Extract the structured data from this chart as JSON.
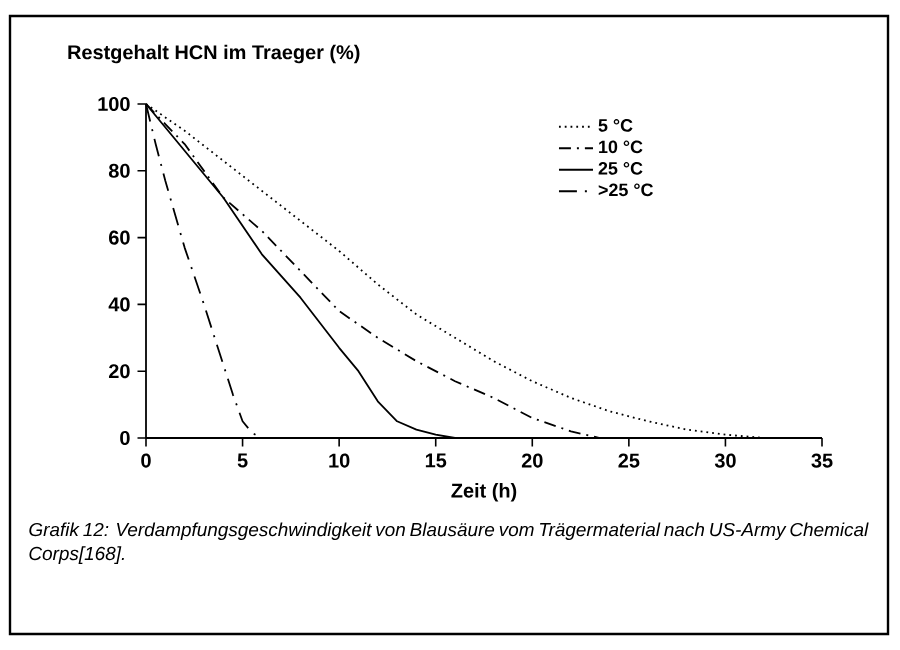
{
  "chart_data": {
    "type": "line",
    "ylabel": "Restgehalt HCN im Traeger (%)",
    "xlabel": "Zeit (h)",
    "annotations": [
      "Grafik 12: Verdampfungsgeschwindigkeit von Blausäure vom Trägermaterial nach US-Army Chemical Corps[168]."
    ],
    "xlim": [
      0,
      35
    ],
    "xticks": [
      0,
      5,
      10,
      15,
      20,
      25,
      30,
      35
    ],
    "ylim": [
      0,
      100
    ],
    "yticks": [
      0,
      20,
      40,
      60,
      80,
      100
    ],
    "legend": "top right",
    "grid": false,
    "marker": "none",
    "series": [
      {
        "name": "5 °C",
        "color": "#000000",
        "line_style": "dotted",
        "x": [
          0,
          2,
          4,
          6,
          8,
          10,
          12,
          14,
          16,
          18,
          20,
          22,
          24,
          26,
          28,
          30,
          32
        ],
        "values": [
          100,
          92,
          83,
          74,
          65,
          56,
          46,
          37,
          30,
          23,
          17,
          12,
          8,
          5,
          2.5,
          1,
          0
        ]
      },
      {
        "name": "10 °C",
        "color": "#000000",
        "line_style": "dashdot",
        "x": [
          0,
          1,
          2,
          4,
          6,
          8,
          10,
          12,
          14,
          16,
          18,
          20,
          22,
          23.5
        ],
        "values": [
          100,
          94,
          88,
          72,
          62,
          50,
          38,
          30,
          23,
          17,
          12,
          6,
          2,
          0
        ]
      },
      {
        "name": "25 °C",
        "color": "#000000",
        "line_style": "solid",
        "x": [
          0,
          1,
          2,
          4,
          6,
          8,
          10,
          11,
          12,
          13,
          14,
          15,
          16
        ],
        "values": [
          100,
          93,
          86,
          72,
          55,
          42,
          27,
          20,
          11,
          5,
          2.5,
          1,
          0
        ]
      },
      {
        "name": ">25 °C",
        "color": "#000000",
        "line_style": "longdashdot",
        "x": [
          0,
          0.5,
          1,
          2,
          3,
          4,
          4.5,
          5,
          5.5,
          6
        ],
        "values": [
          100,
          88,
          77,
          57,
          40,
          22,
          13,
          5,
          1.5,
          0
        ]
      }
    ]
  }
}
